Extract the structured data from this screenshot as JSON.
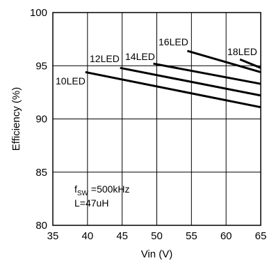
{
  "chart_data": {
    "type": "line",
    "title": "",
    "xlabel": "Vin (V)",
    "ylabel": "Efficiency (%)",
    "xlim": [
      35,
      65
    ],
    "ylim": [
      80,
      100
    ],
    "xticks": [
      35,
      40,
      45,
      50,
      55,
      60,
      65
    ],
    "yticks": [
      80,
      85,
      90,
      95,
      100
    ],
    "grid": true,
    "series": [
      {
        "name": "10LED",
        "x": [
          39.7,
          65
        ],
        "y": [
          94.4,
          91.1
        ]
      },
      {
        "name": "12LED",
        "x": [
          44.7,
          65
        ],
        "y": [
          94.8,
          92.2
        ]
      },
      {
        "name": "14LED",
        "x": [
          49.5,
          65
        ],
        "y": [
          95.2,
          93.3
        ]
      },
      {
        "name": "16LED",
        "x": [
          54.4,
          65
        ],
        "y": [
          96.4,
          94.4
        ]
      },
      {
        "name": "18LED",
        "x": [
          62.0,
          65
        ],
        "y": [
          95.6,
          94.8
        ]
      }
    ],
    "annotations": {
      "fsw_prefix": "f",
      "fsw_sub": "SW",
      "fsw_value": " =500kHz",
      "inductor": "L=47uH"
    }
  }
}
